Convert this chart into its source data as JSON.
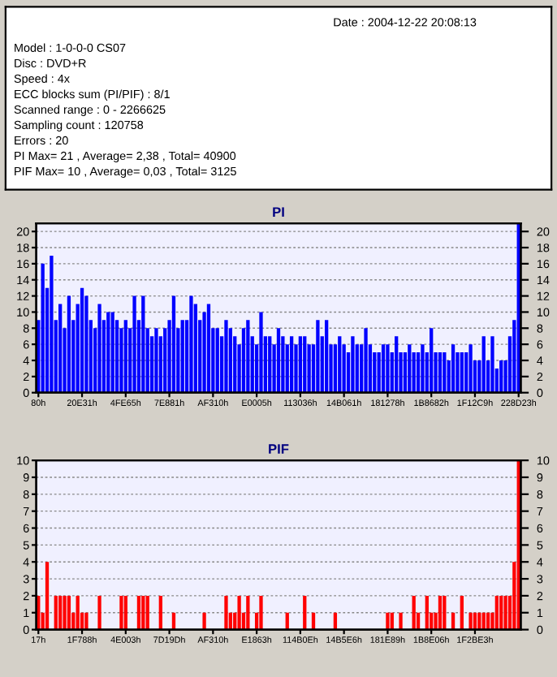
{
  "chart_data": [
    {
      "type": "other",
      "annotations": [
        "Date : 2004-12-22 20:08:13",
        "Model : 1-0-0-0 CS07",
        "Disc : DVD+R",
        "Speed : 4x",
        "ECC blocks sum (PI/PIF) : 8/1",
        "Scanned range : 0 - 2266625",
        "Sampling count : 120758",
        "Errors : 20",
        "PI Max= 21 , Average= 2,38 , Total= 40900",
        "PIF Max= 10 , Average= 0,03 , Total= 3125"
      ]
    },
    {
      "type": "bar",
      "title": "PI",
      "categories": [
        "80h",
        null,
        null,
        null,
        null,
        null,
        null,
        null,
        null,
        null,
        "20E31h",
        null,
        null,
        null,
        null,
        null,
        null,
        null,
        null,
        null,
        "4FE65h",
        null,
        null,
        null,
        null,
        null,
        null,
        null,
        null,
        null,
        "7E881h",
        null,
        null,
        null,
        null,
        null,
        null,
        null,
        null,
        null,
        "AF310h",
        null,
        null,
        null,
        null,
        null,
        null,
        null,
        null,
        null,
        "E0005h",
        null,
        null,
        null,
        null,
        null,
        null,
        null,
        null,
        null,
        "113036h",
        null,
        null,
        null,
        null,
        null,
        null,
        null,
        null,
        null,
        "14B061h",
        null,
        null,
        null,
        null,
        null,
        null,
        null,
        null,
        null,
        "181278h",
        null,
        null,
        null,
        null,
        null,
        null,
        null,
        null,
        null,
        "1B8682h",
        null,
        null,
        null,
        null,
        null,
        null,
        null,
        null,
        null,
        "1F12C9h",
        null,
        null,
        null,
        null,
        null,
        null,
        null,
        null,
        null,
        "228D23h"
      ],
      "series": [
        {
          "color": "#0000ff",
          "values": [
            9,
            16,
            13,
            17,
            9,
            11,
            8,
            12,
            9,
            11,
            13,
            12,
            9,
            8,
            11,
            9,
            10,
            10,
            9,
            8,
            9,
            8,
            12,
            9,
            12,
            8,
            7,
            8,
            7,
            8,
            9,
            12,
            8,
            9,
            9,
            12,
            11,
            9,
            10,
            11,
            8,
            8,
            7,
            9,
            8,
            7,
            6,
            8,
            9,
            7,
            6,
            10,
            7,
            7,
            6,
            8,
            7,
            6,
            7,
            6,
            7,
            7,
            6,
            6,
            9,
            7,
            9,
            6,
            6,
            7,
            6,
            5,
            7,
            6,
            6,
            8,
            6,
            5,
            5,
            6,
            6,
            5,
            7,
            5,
            5,
            6,
            5,
            5,
            6,
            5,
            8,
            5,
            5,
            5,
            4,
            6,
            5,
            5,
            5,
            6,
            4,
            4,
            7,
            4,
            7,
            3,
            4,
            4,
            7,
            9,
            21
          ]
        }
      ],
      "ylim": [
        0,
        21
      ],
      "yticks": [
        0,
        2,
        4,
        6,
        8,
        10,
        12,
        14,
        16,
        18,
        20
      ],
      "y2lim": [
        0,
        21
      ],
      "y2ticks": [
        0,
        2,
        4,
        6,
        8,
        10,
        12,
        14,
        16,
        18,
        20
      ],
      "grid": "y"
    },
    {
      "type": "bar",
      "title": "PIF",
      "categories": [
        "17h",
        null,
        null,
        null,
        null,
        null,
        null,
        null,
        null,
        null,
        "1F788h",
        null,
        null,
        null,
        null,
        null,
        null,
        null,
        null,
        null,
        "4E003h",
        null,
        null,
        null,
        null,
        null,
        null,
        null,
        null,
        null,
        "7D19Dh",
        null,
        null,
        null,
        null,
        null,
        null,
        null,
        null,
        null,
        "AF310h",
        null,
        null,
        null,
        null,
        null,
        null,
        null,
        null,
        null,
        "E1863h",
        null,
        null,
        null,
        null,
        null,
        null,
        null,
        null,
        null,
        "114B0Eh",
        null,
        null,
        null,
        null,
        null,
        null,
        null,
        null,
        null,
        "14B5E6h",
        null,
        null,
        null,
        null,
        null,
        null,
        null,
        null,
        null,
        "181E89h",
        null,
        null,
        null,
        null,
        null,
        null,
        null,
        null,
        null,
        "1B8E06h",
        null,
        null,
        null,
        null,
        null,
        null,
        null,
        null,
        null,
        "1F2BE3h",
        null,
        null,
        null,
        null,
        null,
        null,
        null,
        null,
        null,
        null
      ],
      "series": [
        {
          "color": "#ff0000",
          "values": [
            2,
            1,
            4,
            0,
            2,
            2,
            2,
            2,
            1,
            2,
            1,
            1,
            0,
            0,
            2,
            0,
            0,
            0,
            0,
            2,
            2,
            0,
            0,
            2,
            2,
            2,
            0,
            0,
            2,
            0,
            0,
            1,
            0,
            0,
            0,
            0,
            0,
            0,
            1,
            0,
            0,
            0,
            0,
            2,
            1,
            1,
            2,
            1,
            2,
            0,
            1,
            2,
            0,
            0,
            0,
            0,
            0,
            1,
            0,
            0,
            0,
            2,
            0,
            1,
            0,
            0,
            0,
            0,
            1,
            0,
            0,
            0,
            0,
            0,
            0,
            0,
            0,
            0,
            0,
            0,
            1,
            1,
            0,
            1,
            0,
            0,
            2,
            1,
            0,
            2,
            1,
            1,
            2,
            2,
            0,
            1,
            0,
            2,
            0,
            1,
            1,
            1,
            1,
            1,
            1,
            2,
            2,
            2,
            2,
            4,
            10
          ]
        }
      ],
      "ylim": [
        0,
        10
      ],
      "yticks": [
        0,
        1,
        2,
        3,
        4,
        5,
        6,
        7,
        8,
        9,
        10
      ],
      "y2lim": [
        0,
        10
      ],
      "y2ticks": [
        0,
        1,
        2,
        3,
        4,
        5,
        6,
        7,
        8,
        9,
        10
      ],
      "grid": "y"
    }
  ]
}
